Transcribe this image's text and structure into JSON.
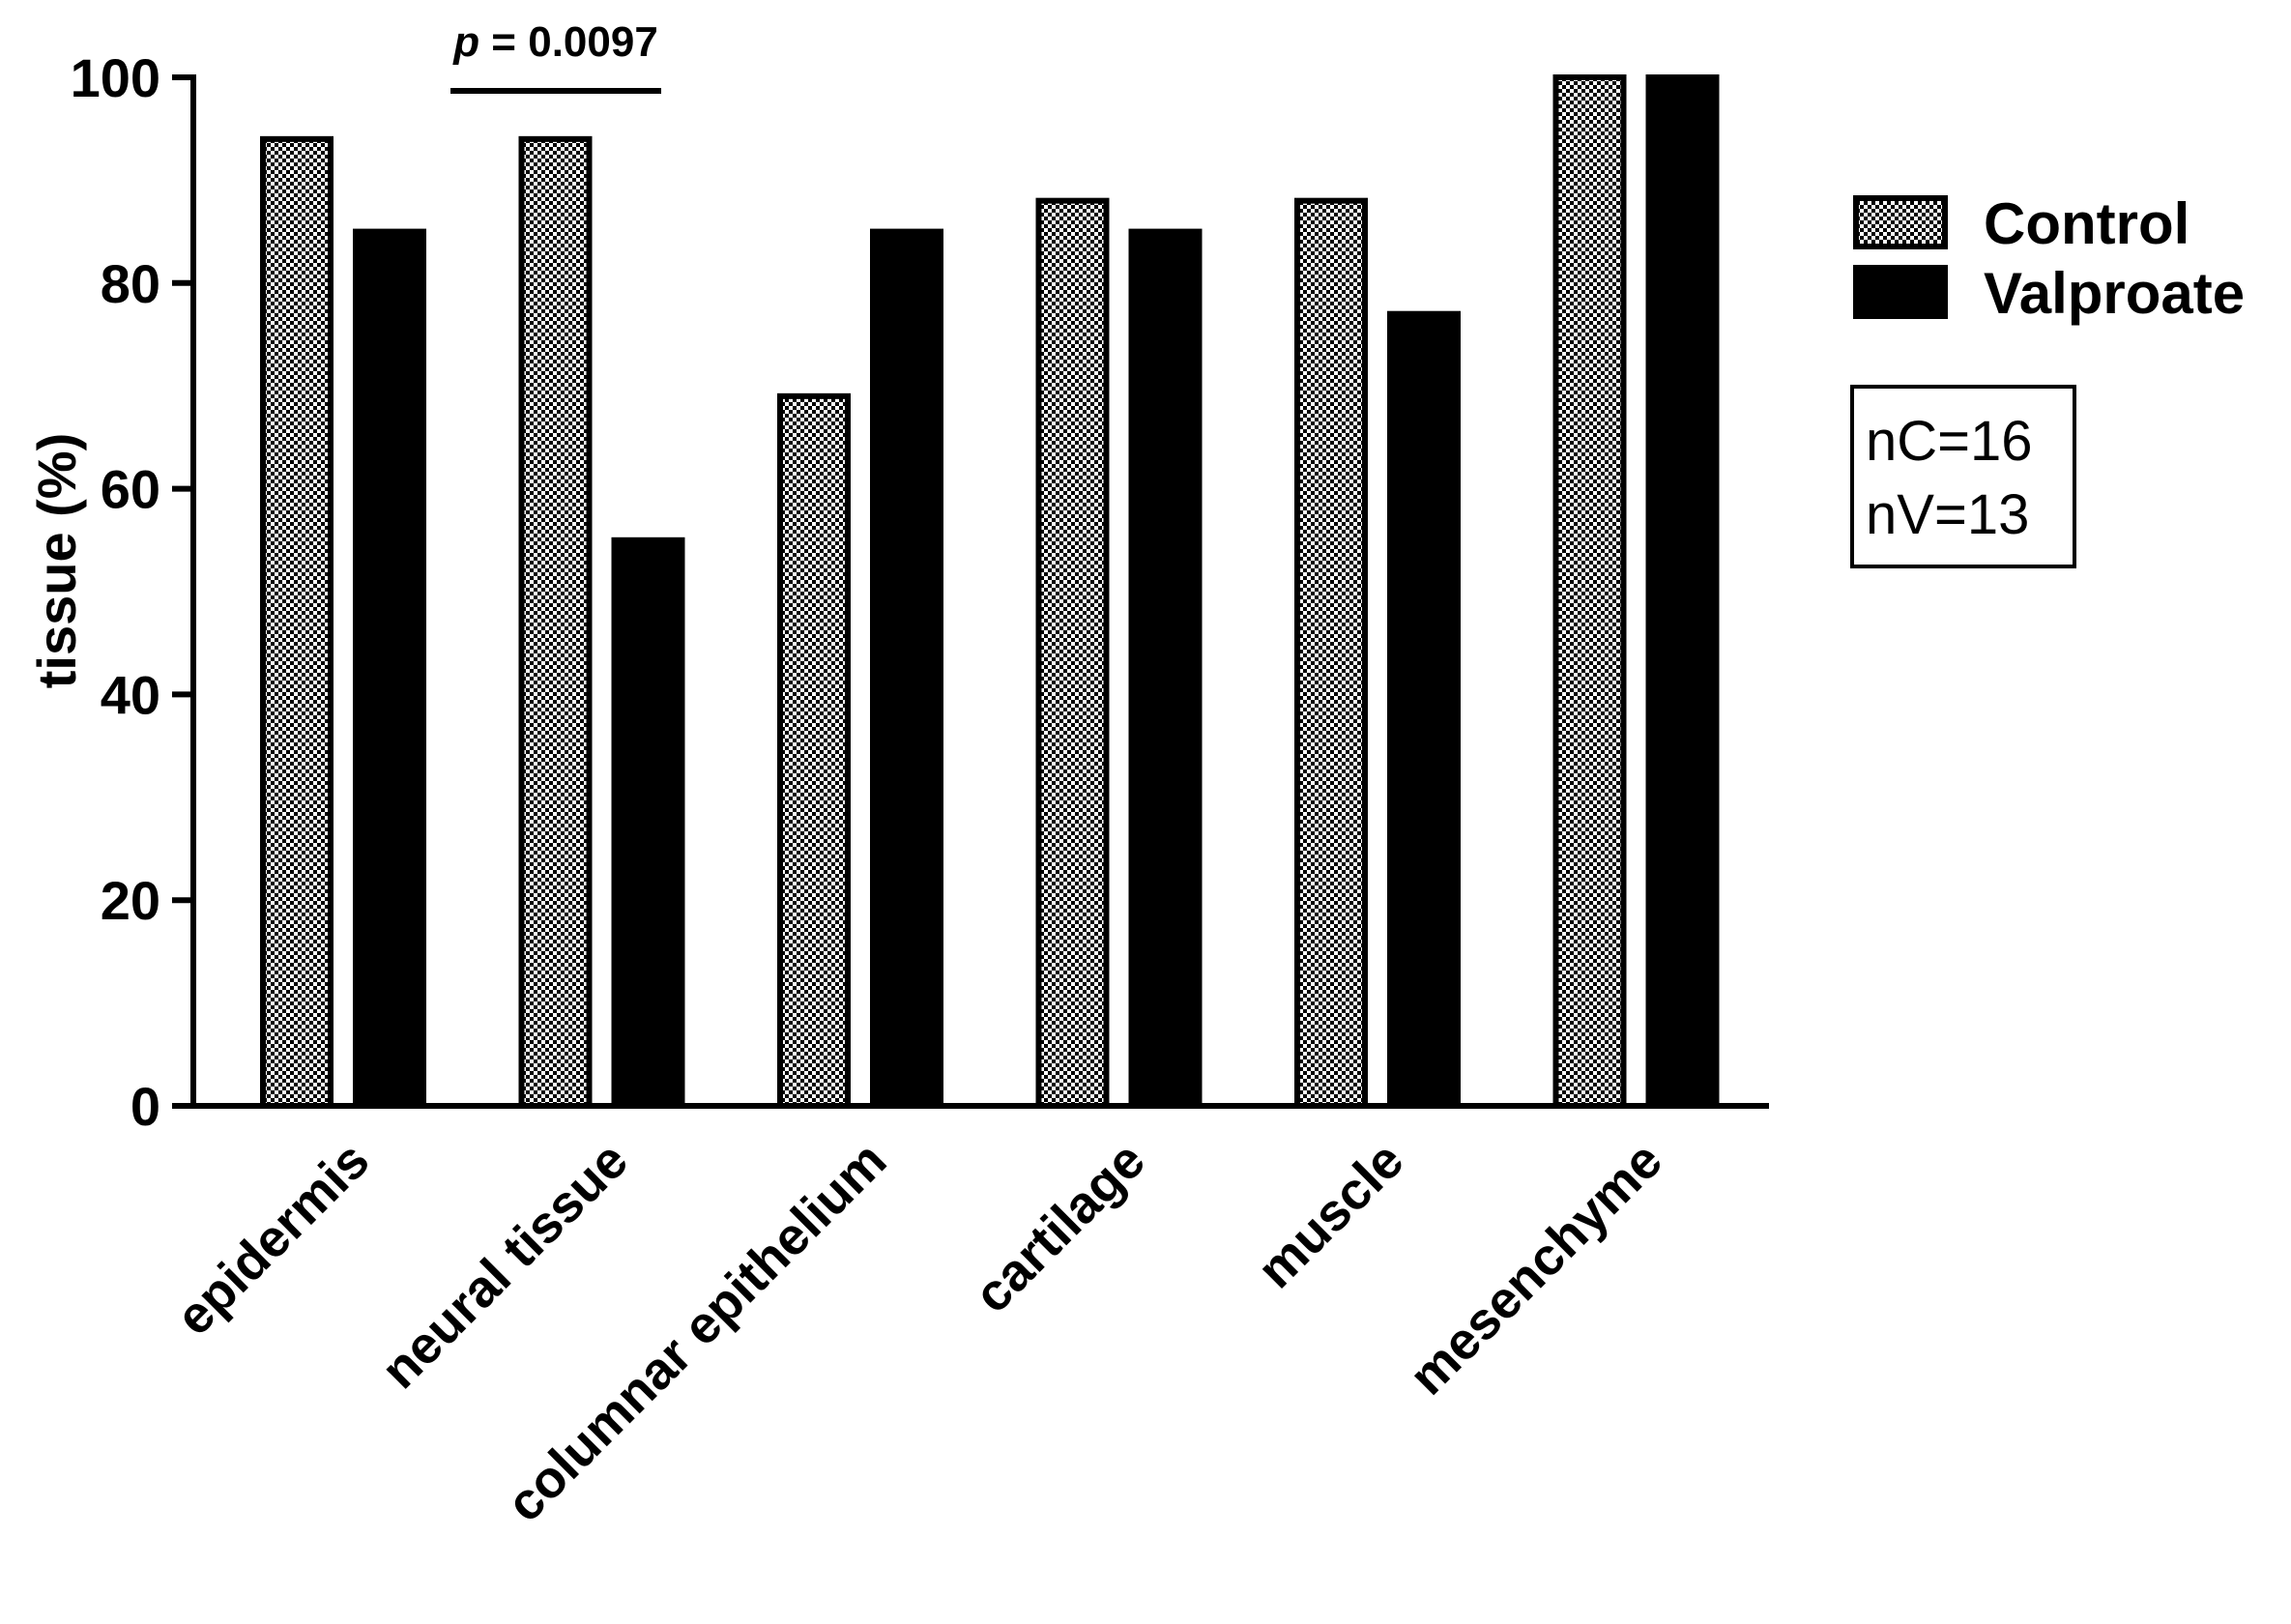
{
  "chart_data": {
    "type": "bar",
    "title": "",
    "xlabel": "",
    "ylabel": "tissue  (%)",
    "ylim": [
      0,
      100
    ],
    "yticks": [
      0,
      20,
      40,
      60,
      80,
      100
    ],
    "categories": [
      "epidermis",
      "neural tissue",
      "columnar epithelium",
      "cartilage",
      "muscle",
      "mesenchyme"
    ],
    "series": [
      {
        "name": "Control",
        "pattern": "checkered",
        "values": [
          94,
          94,
          69,
          88,
          88,
          100
        ]
      },
      {
        "name": "Valproate",
        "pattern": "solid",
        "color": "#000000",
        "values": [
          85,
          55,
          85,
          85,
          77,
          100
        ]
      }
    ],
    "legend_position": "right",
    "grid": false,
    "annotations": [
      {
        "p_label": "p",
        "text": " = 0.0097",
        "category": "neural tissue"
      }
    ],
    "sample_sizes": [
      "nC=16",
      "nV=13"
    ]
  }
}
